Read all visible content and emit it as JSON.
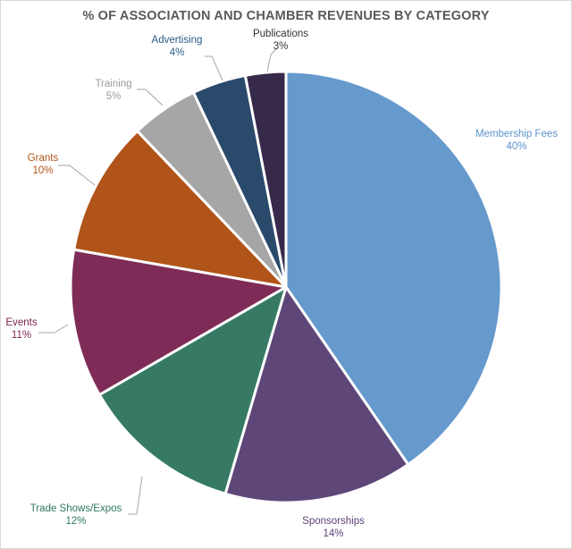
{
  "chart_data": {
    "type": "pie",
    "title": "% OF ASSOCIATION AND CHAMBER REVENUES BY CATEGORY",
    "slices": [
      {
        "label": "Membership Fees",
        "value": 40,
        "value_label": "40%",
        "color": "#6699CC"
      },
      {
        "label": "Sponsorships",
        "value": 14,
        "value_label": "14%",
        "color": "#5E4679"
      },
      {
        "label": "Trade Shows/Expos",
        "value": 12,
        "value_label": "12%",
        "color": "#367A65"
      },
      {
        "label": "Events",
        "value": 11,
        "value_label": "11%",
        "color": "#7E2C57"
      },
      {
        "label": "Grants",
        "value": 10,
        "value_label": "10%",
        "color": "#B05419"
      },
      {
        "label": "Training",
        "value": 5,
        "value_label": "5%",
        "color": "#A6A6A6"
      },
      {
        "label": "Advertising",
        "value": 4,
        "value_label": "4%",
        "color": "#2A4A6B"
      },
      {
        "label": "Publications",
        "value": 3,
        "value_label": "3%",
        "color": "#36294A"
      }
    ],
    "label_colors": {
      "Membership Fees": "#5E93CB",
      "Sponsorships": "#5A3F79",
      "Trade Shows/Expos": "#2F7A5F",
      "Events": "#7A2550",
      "Grants": "#B05419",
      "Training": "#9A9A9A",
      "Advertising": "#2B5A8A",
      "Publications": "#333333"
    },
    "start": "top",
    "direction": "clockwise",
    "legend": "none"
  }
}
